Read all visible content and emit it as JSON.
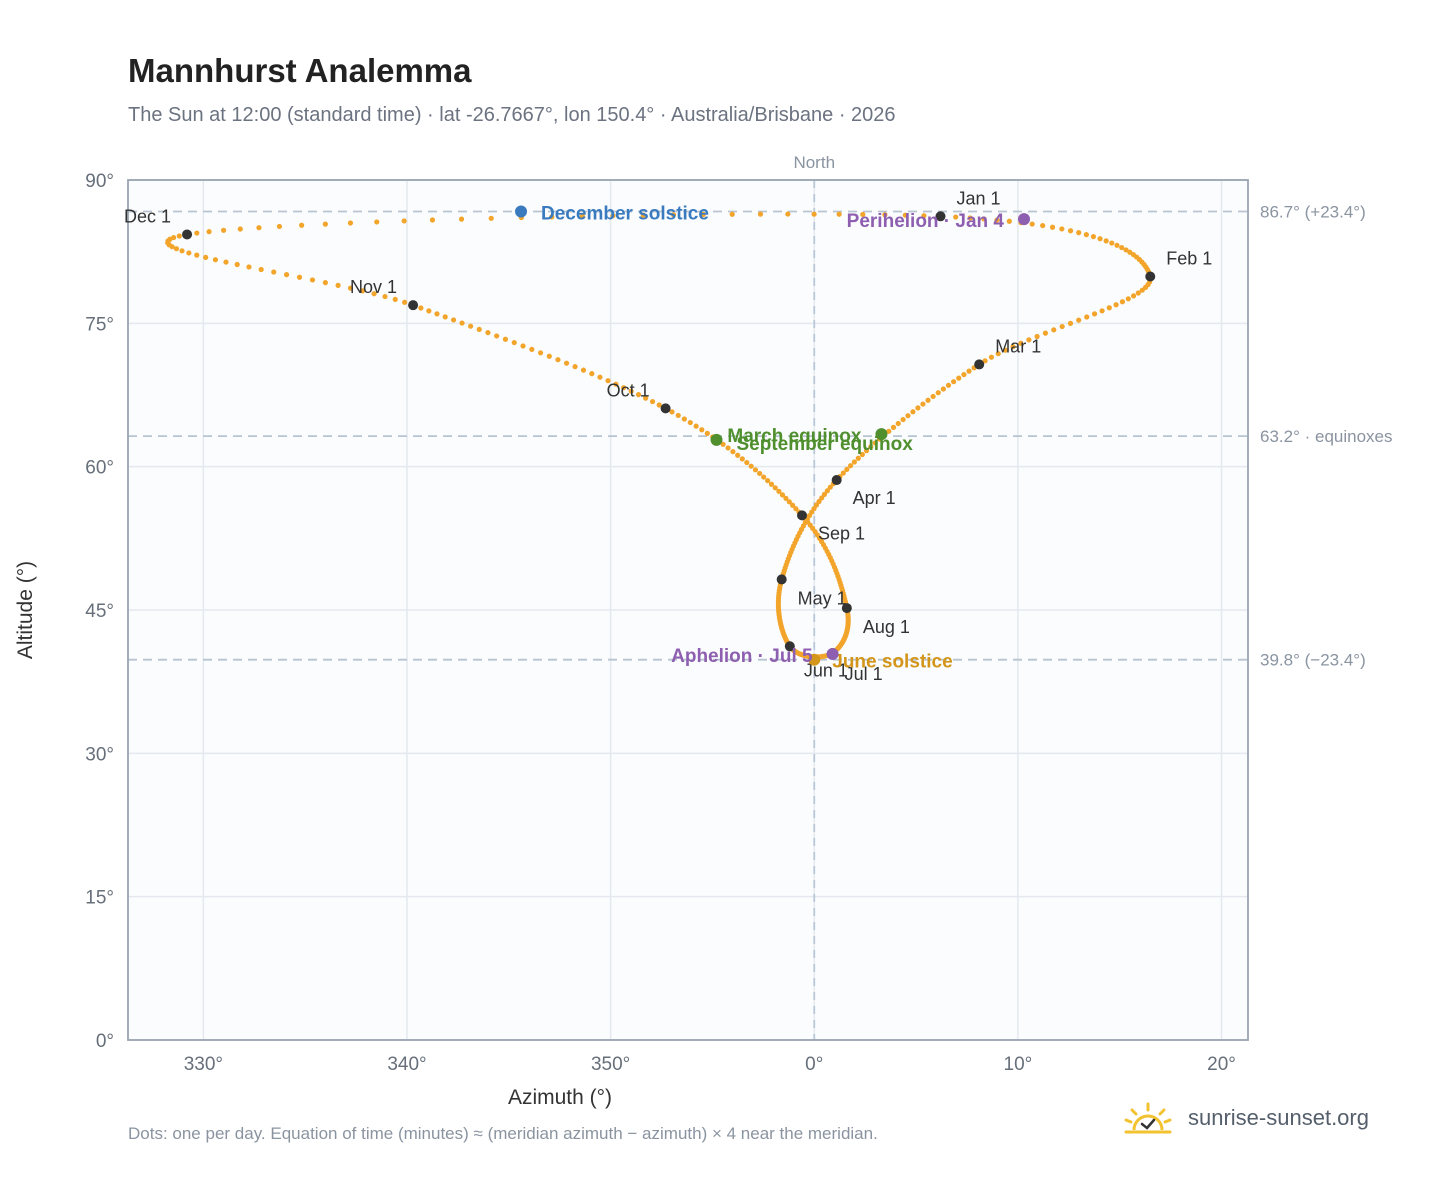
{
  "header": {
    "title": "Mannhurst Analemma",
    "subtitle": "The Sun at 12:00 (standard time) · lat -26.7667°, lon 150.4° · Australia/Brisbane · 2026"
  },
  "footer": {
    "note": "Dots: one per day. Equation of time (minutes) ≈ (meridian azimuth − azimuth) × 4 near the meridian.",
    "brand": "sunrise-sunset.org"
  },
  "colors": {
    "curve": "#f2a52a",
    "month_marker": "#333333",
    "december_solstice": "#3a7bbf",
    "june_solstice": "#d4961a",
    "equinox": "#4f8f2e",
    "apsis": "#8e5fb0"
  },
  "chart_data": {
    "type": "scatter",
    "title": "Mannhurst Analemma",
    "xlabel": "Azimuth (°)",
    "ylabel": "Altitude (°)",
    "xlim": [
      -16.2,
      21.2
    ],
    "ylim": [
      0,
      90
    ],
    "x_ticks": [
      -20,
      -10,
      0,
      10,
      20
    ],
    "x_tick_labels": [
      "330°",
      "340°",
      "350°",
      "0°",
      "10°",
      "20°"
    ],
    "x_tick_values": [
      -30,
      -20,
      -10,
      0,
      10,
      20
    ],
    "y_ticks": [
      0,
      15,
      30,
      45,
      60,
      75,
      90
    ],
    "y_tick_labels": [
      "0°",
      "15°",
      "30°",
      "45°",
      "60°",
      "75°",
      "90°"
    ],
    "grid": true,
    "north_label": "North",
    "reference_lines": [
      {
        "altitude": 86.7,
        "label": "86.7° (+23.4°)"
      },
      {
        "altitude": 63.2,
        "label": "63.2° · equinoxes"
      },
      {
        "altitude": 39.8,
        "label": "39.8° (−23.4°)"
      }
    ],
    "series": [
      {
        "values_by_month_start": [
          {
            "label": "Jan 1",
            "azimuth": 6.2,
            "altitude": 86.2
          },
          {
            "label": "Feb 1",
            "azimuth": 16.5,
            "altitude": 79.9
          },
          {
            "label": "Mar 1",
            "azimuth": 8.1,
            "altitude": 70.7
          },
          {
            "label": "Apr 1",
            "azimuth": 1.1,
            "altitude": 58.6
          },
          {
            "label": "May 1",
            "azimuth": -1.6,
            "altitude": 48.2
          },
          {
            "label": "Jun 1",
            "azimuth": -1.2,
            "altitude": 41.2
          },
          {
            "label": "Jul 1",
            "azimuth": 0.9,
            "altitude": 40.5
          },
          {
            "label": "Aug 1",
            "azimuth": 1.6,
            "altitude": 45.2
          },
          {
            "label": "Sep 1",
            "azimuth": -0.6,
            "altitude": 54.9
          },
          {
            "label": "Oct 1",
            "azimuth": -7.3,
            "altitude": 66.1
          },
          {
            "label": "Nov 1",
            "azimuth": -19.7,
            "altitude": 76.9
          },
          {
            "label": "Dec 1",
            "azimuth": -30.8,
            "altitude": 84.3
          }
        ]
      }
    ],
    "events": [
      {
        "label": "December solstice",
        "azimuth": -14.4,
        "altitude": 86.7,
        "kind": "december_solstice"
      },
      {
        "label": "Perihelion · Jan 4",
        "azimuth": 10.3,
        "altitude": 85.9,
        "kind": "apsis"
      },
      {
        "label": "March equinox",
        "azimuth": 3.3,
        "altitude": 63.4,
        "kind": "equinox"
      },
      {
        "label": "September equinox",
        "azimuth": -4.8,
        "altitude": 62.8,
        "kind": "equinox"
      },
      {
        "label": "June solstice",
        "azimuth": 0.0,
        "altitude": 39.8,
        "kind": "june_solstice"
      },
      {
        "label": "Aphelion · Jul 5",
        "azimuth": 0.9,
        "altitude": 40.4,
        "kind": "apsis"
      }
    ]
  }
}
